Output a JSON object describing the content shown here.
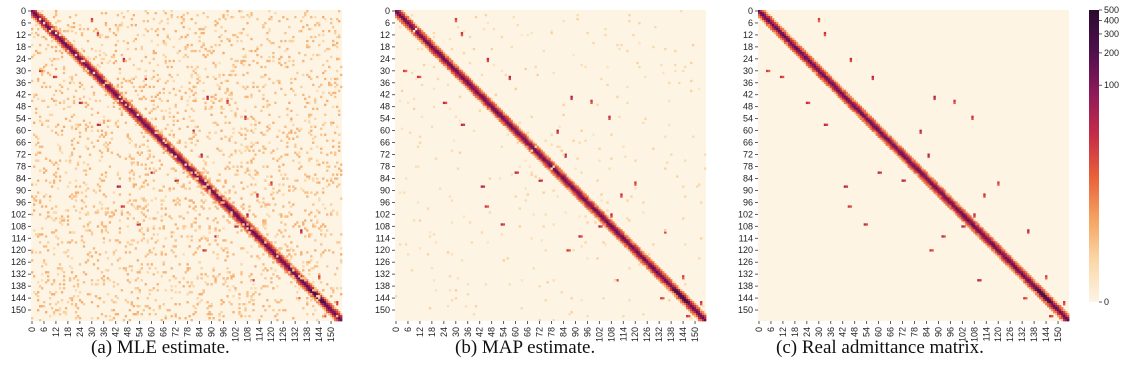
{
  "chart_data": [
    {
      "type": "heatmap",
      "caption": "(a) MLE estimate.",
      "variant": "mle",
      "size": 156,
      "xlim": [
        0,
        155
      ],
      "ylim": [
        0,
        155
      ],
      "tick_step": 6,
      "ticks": [
        0,
        6,
        12,
        18,
        24,
        30,
        36,
        42,
        48,
        54,
        60,
        66,
        72,
        78,
        84,
        90,
        96,
        102,
        108,
        114,
        120,
        126,
        132,
        138,
        144,
        150
      ],
      "diagonal_band": "strong near-diagonal values (~50–200), peak near index 144 (~300)",
      "offdiag_clusters": [
        [
          4,
          30
        ],
        [
          11,
          33
        ],
        [
          24,
          46
        ],
        [
          33,
          57
        ],
        [
          43,
          88
        ],
        [
          45,
          98
        ],
        [
          53,
          107
        ],
        [
          60,
          81
        ],
        [
          72,
          85
        ],
        [
          86,
          120
        ],
        [
          92,
          113
        ],
        [
          102,
          108
        ],
        [
          110,
          135
        ],
        [
          133,
          144
        ],
        [
          146,
          153
        ]
      ],
      "background": "faint values (~1–5) spread over whole matrix"
    },
    {
      "type": "heatmap",
      "caption": "(b) MAP estimate.",
      "variant": "map",
      "size": 156,
      "xlim": [
        0,
        155
      ],
      "ylim": [
        0,
        155
      ],
      "tick_step": 6,
      "ticks": [
        0,
        6,
        12,
        18,
        24,
        30,
        36,
        42,
        48,
        54,
        60,
        66,
        72,
        78,
        84,
        90,
        96,
        102,
        108,
        114,
        120,
        126,
        132,
        138,
        144,
        150
      ],
      "diagonal_band": "strong near-diagonal values (~50–200), peak near index 144 (~300)",
      "offdiag_clusters": [
        [
          4,
          30
        ],
        [
          11,
          33
        ],
        [
          24,
          46
        ],
        [
          33,
          57
        ],
        [
          43,
          88
        ],
        [
          45,
          98
        ],
        [
          53,
          107
        ],
        [
          60,
          81
        ],
        [
          72,
          85
        ],
        [
          86,
          120
        ],
        [
          92,
          113
        ],
        [
          102,
          108
        ],
        [
          110,
          135
        ],
        [
          133,
          144
        ],
        [
          146,
          153
        ]
      ],
      "background": "sparse faint blocks"
    },
    {
      "type": "heatmap",
      "caption": "(c) Real admittance matrix.",
      "variant": "real",
      "size": 156,
      "xlim": [
        0,
        155
      ],
      "ylim": [
        0,
        155
      ],
      "tick_step": 6,
      "ticks": [
        0,
        6,
        12,
        18,
        24,
        30,
        36,
        42,
        48,
        54,
        60,
        66,
        72,
        78,
        84,
        90,
        96,
        102,
        108,
        114,
        120,
        126,
        132,
        138,
        144,
        150
      ],
      "diagonal_band": "strong near-diagonal values (~50–200), peak near index 144 (~300)",
      "offdiag_clusters": [
        [
          4,
          30
        ],
        [
          11,
          33
        ],
        [
          24,
          46
        ],
        [
          33,
          57
        ],
        [
          43,
          88
        ],
        [
          45,
          98
        ],
        [
          53,
          107
        ],
        [
          60,
          81
        ],
        [
          72,
          85
        ],
        [
          86,
          120
        ],
        [
          92,
          113
        ],
        [
          102,
          108
        ],
        [
          110,
          135
        ],
        [
          133,
          144
        ],
        [
          146,
          153
        ]
      ],
      "background": "zero"
    }
  ],
  "colorbar": {
    "scale": "symlog",
    "min": 0,
    "max": 500,
    "tick_values": [
      0,
      100,
      200,
      300,
      400,
      500
    ],
    "tick_labels": [
      "0",
      "100",
      "200",
      "300",
      "400",
      "500"
    ],
    "colors": [
      "#fdf4e4",
      "#fbd7a7",
      "#f5a260",
      "#e9603a",
      "#c62c47",
      "#8e1a5a",
      "#4f0f4e",
      "#2b0b2e"
    ]
  }
}
